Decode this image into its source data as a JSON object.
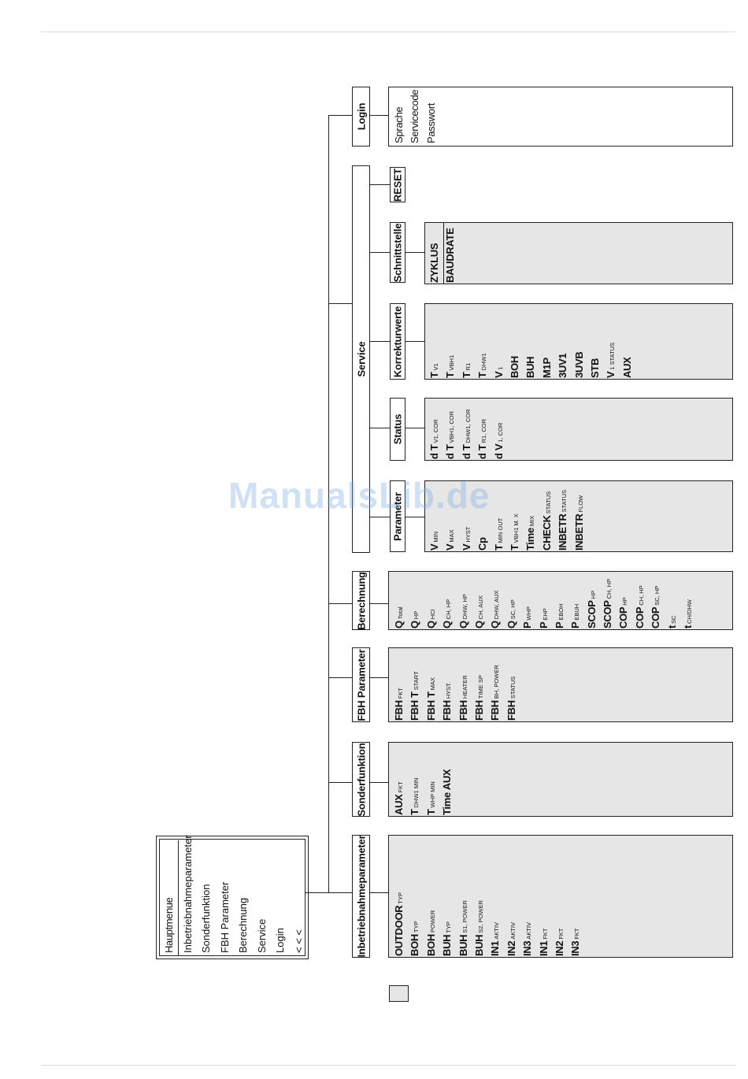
{
  "hauptmenue": {
    "title": "Hauptmenue",
    "items": [
      "Inbetriebnahmeparameter",
      "Sonderfunktion",
      "FBH Parameter",
      "Berechnung",
      "Service",
      "Login",
      "< < <"
    ]
  },
  "menus": {
    "inbetriebnahme": "Inbetriebnahmeparameter",
    "sonderfunktion": "Sonderfunktion",
    "fbh": "FBH Parameter",
    "berechnung": "Berechnung",
    "service": "Service",
    "login": "Login"
  },
  "service_menus": {
    "parameter": "Parameter",
    "status": "Status",
    "korrektur": "Korrekturwerte",
    "schnittstelle": "Schnittstelle",
    "reset": "RESET"
  },
  "lists": {
    "inbetriebnahme": [
      [
        "OUTDOOR",
        "TYP"
      ],
      [
        "BOH",
        "TYP"
      ],
      [
        "BOH",
        "POWER"
      ],
      [
        "BUH",
        "TYP"
      ],
      [
        "BUH",
        "S1, POWER"
      ],
      [
        "BUH",
        "S2, POWER"
      ],
      [
        "IN1",
        "AKTIV"
      ],
      [
        "IN2",
        "AKTIV"
      ],
      [
        "IN3",
        "AKTIV"
      ],
      [
        "IN1",
        "FKT"
      ],
      [
        "IN2",
        "FKT"
      ],
      [
        "IN3",
        "FKT"
      ]
    ],
    "sonderfunktion": [
      [
        "AUX",
        "FKT"
      ],
      [
        "T",
        "DHW1 MIN"
      ],
      [
        "T",
        "WHP MIN"
      ],
      [
        "Time AUX",
        ""
      ]
    ],
    "fbh": [
      [
        "FBH",
        "FKT"
      ],
      [
        "FBH T",
        "START"
      ],
      [
        "FBH T",
        "MAX"
      ],
      [
        "FBH",
        "HYST."
      ],
      [
        "FBH",
        "HEATER"
      ],
      [
        "FBH",
        "TIME SP"
      ],
      [
        "FBH",
        "BH, POWER"
      ],
      [
        "FBH",
        "STATUS"
      ]
    ],
    "berechnung": [
      [
        "Q",
        "Total"
      ],
      [
        "Q",
        "HP"
      ],
      [
        "Q",
        "HCI"
      ],
      [
        "Q",
        "CH, HP"
      ],
      [
        "Q",
        "DHW, HP"
      ],
      [
        "Q",
        "CH, AUX"
      ],
      [
        "Q",
        "DHW, AUX"
      ],
      [
        "Q",
        "SC, HP"
      ],
      [
        "P",
        "WHP"
      ],
      [
        "P",
        "EHP"
      ],
      [
        "P",
        "EBOH"
      ],
      [
        "P",
        "EBUH"
      ],
      [
        "SCOP",
        "HP"
      ],
      [
        "SCOP",
        "CH, HP"
      ],
      [
        "COP",
        "HP"
      ],
      [
        "COP",
        "CH, HP"
      ],
      [
        "COP",
        "SC, HP"
      ],
      [
        "t",
        "SC"
      ],
      [
        "t",
        "CH/DHW"
      ]
    ],
    "parameter": [
      [
        "V",
        "MIN"
      ],
      [
        "V",
        "MAX"
      ],
      [
        "V",
        "HYST"
      ],
      [
        "Cp",
        ""
      ],
      [
        "T",
        "MIN OUT"
      ],
      [
        "T",
        "VBH1 M. X"
      ],
      [
        "Time",
        "MIX"
      ],
      [
        "CHECK",
        "STATUS"
      ],
      [
        "INBETR",
        "STATUS"
      ],
      [
        "INBETR",
        "FLOW"
      ]
    ],
    "status": [
      [
        "d T",
        "V1, COR"
      ],
      [
        "d T",
        "VBH1, COR"
      ],
      [
        "d T",
        "DHW1, COR"
      ],
      [
        "d T",
        "R1, COR"
      ],
      [
        "d V",
        "1, COR"
      ]
    ],
    "korrektur": [
      [
        "T",
        "V1"
      ],
      [
        "T",
        "VBH1"
      ],
      [
        "T",
        "R1"
      ],
      [
        "T",
        "DHW1"
      ],
      [
        "V",
        "1"
      ],
      [
        "BOH",
        ""
      ],
      [
        "BUH",
        ""
      ],
      [
        "M1P",
        ""
      ],
      [
        "3UV1",
        ""
      ],
      [
        "3UVB",
        ""
      ],
      [
        "STB",
        ""
      ],
      [
        "V",
        "1 STATUS"
      ],
      [
        "AUX",
        ""
      ]
    ],
    "schnittstelle": [
      [
        "ZYKLUS",
        ""
      ],
      [
        "BAUDRATE",
        ""
      ]
    ],
    "login": [
      [
        "Sprache",
        ""
      ],
      [
        "Servicecode",
        ""
      ],
      [
        "Passwort",
        ""
      ]
    ]
  },
  "watermark": "ManualsLib.de"
}
